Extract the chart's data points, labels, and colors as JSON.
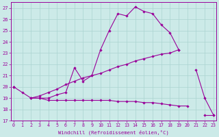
{
  "xlabel": "Windchill (Refroidissement éolien,°C)",
  "x_ticks": [
    0,
    1,
    2,
    3,
    4,
    5,
    6,
    7,
    8,
    9,
    10,
    11,
    12,
    13,
    14,
    15,
    16,
    17,
    18,
    19,
    20,
    21,
    22,
    23
  ],
  "ylim": [
    17,
    27.5
  ],
  "yticks": [
    17,
    18,
    19,
    20,
    21,
    22,
    23,
    24,
    25,
    26,
    27
  ],
  "xlim": [
    -0.3,
    23.3
  ],
  "bg_color": "#cceae8",
  "line_color": "#990099",
  "grid_color": "#aad4d0",
  "line1_y": [
    20.0,
    19.5,
    19.0,
    19.0,
    19.0,
    19.3,
    19.5,
    21.7,
    20.5,
    21.0,
    23.3,
    25.0,
    26.5,
    26.3,
    27.1,
    26.7,
    26.5,
    25.5,
    24.8,
    23.3,
    null,
    null,
    null,
    null
  ],
  "line2_y": [
    20.0,
    null,
    19.0,
    19.2,
    19.5,
    19.8,
    20.2,
    20.5,
    20.8,
    21.0,
    21.2,
    21.5,
    21.8,
    22.0,
    22.3,
    22.5,
    22.7,
    22.9,
    23.0,
    23.3,
    null,
    21.5,
    19.0,
    17.5
  ],
  "line3_y": [
    20.0,
    null,
    19.0,
    19.0,
    18.8,
    18.8,
    18.8,
    18.8,
    18.8,
    18.8,
    18.8,
    18.8,
    18.7,
    18.7,
    18.7,
    18.6,
    18.6,
    18.5,
    18.4,
    18.3,
    18.3,
    null,
    17.5,
    17.5
  ]
}
